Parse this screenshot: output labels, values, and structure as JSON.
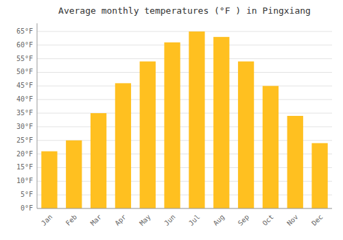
{
  "chart_data": {
    "type": "bar",
    "title": "Average monthly temperatures (°F ) in Pingxiang",
    "categories": [
      "Jan",
      "Feb",
      "Mar",
      "Apr",
      "May",
      "Jun",
      "Jul",
      "Aug",
      "Sep",
      "Oct",
      "Nov",
      "Dec"
    ],
    "values": [
      21,
      25,
      35,
      46,
      54,
      61,
      65,
      63,
      54,
      45,
      34,
      24
    ],
    "color": "#FFC020",
    "ylim": [
      0,
      68
    ],
    "yticks": [
      {
        "value": 0,
        "label": "0°F"
      },
      {
        "value": 5,
        "label": "5°F"
      },
      {
        "value": 10,
        "label": "10°F"
      },
      {
        "value": 15,
        "label": "15°F"
      },
      {
        "value": 20,
        "label": "20°F"
      },
      {
        "value": 25,
        "label": "25°F"
      },
      {
        "value": 30,
        "label": "30°F"
      },
      {
        "value": 35,
        "label": "35°F"
      },
      {
        "value": 40,
        "label": "40°F"
      },
      {
        "value": 45,
        "label": "45°F"
      },
      {
        "value": 50,
        "label": "50°F"
      },
      {
        "value": 55,
        "label": "55°F"
      },
      {
        "value": 60,
        "label": "60°F"
      },
      {
        "value": 65,
        "label": "65°F"
      }
    ],
    "grid": true
  }
}
